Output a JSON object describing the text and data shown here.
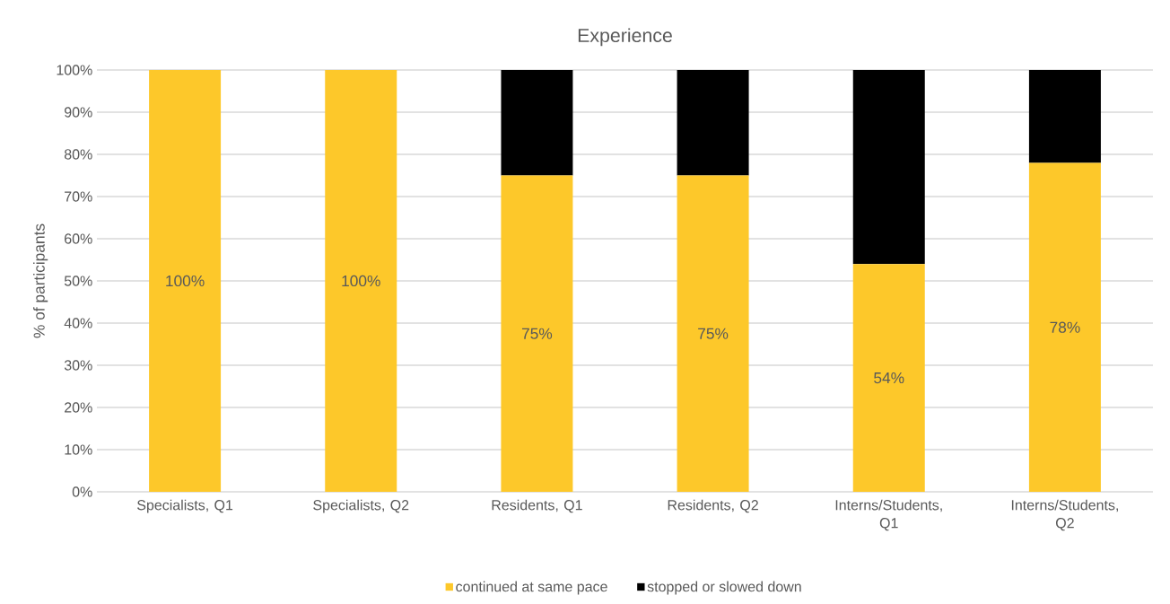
{
  "chart_data": {
    "type": "bar",
    "title": "Experience",
    "ylabel": "% of participants",
    "categories": [
      "Specialists, Q1",
      "Specialists, Q2",
      "Residents, Q1",
      "Residents, Q2",
      "Interns/Students, Q1",
      "Interns/Students, Q2"
    ],
    "series": [
      {
        "name": "continued at same pace",
        "color": "#fdc82a",
        "values": [
          100,
          100,
          75,
          75,
          54,
          78
        ],
        "value_labels": [
          "100%",
          "100%",
          "75%",
          "75%",
          "54%",
          "78%"
        ]
      },
      {
        "name": "stopped or slowed down",
        "color": "#000000",
        "values": [
          0,
          0,
          25,
          25,
          46,
          22
        ]
      }
    ],
    "stacked": true,
    "ylim": [
      0,
      100
    ],
    "yticks": [
      {
        "value": 0,
        "label": "0%"
      },
      {
        "value": 10,
        "label": "10%"
      },
      {
        "value": 20,
        "label": "20%"
      },
      {
        "value": 30,
        "label": "30%"
      },
      {
        "value": 40,
        "label": "40%"
      },
      {
        "value": 50,
        "label": "50%"
      },
      {
        "value": 60,
        "label": "60%"
      },
      {
        "value": 70,
        "label": "70%"
      },
      {
        "value": 80,
        "label": "80%"
      },
      {
        "value": 90,
        "label": "90%"
      },
      {
        "value": 100,
        "label": "100%"
      }
    ],
    "grid": "y",
    "legend": "bottom"
  }
}
